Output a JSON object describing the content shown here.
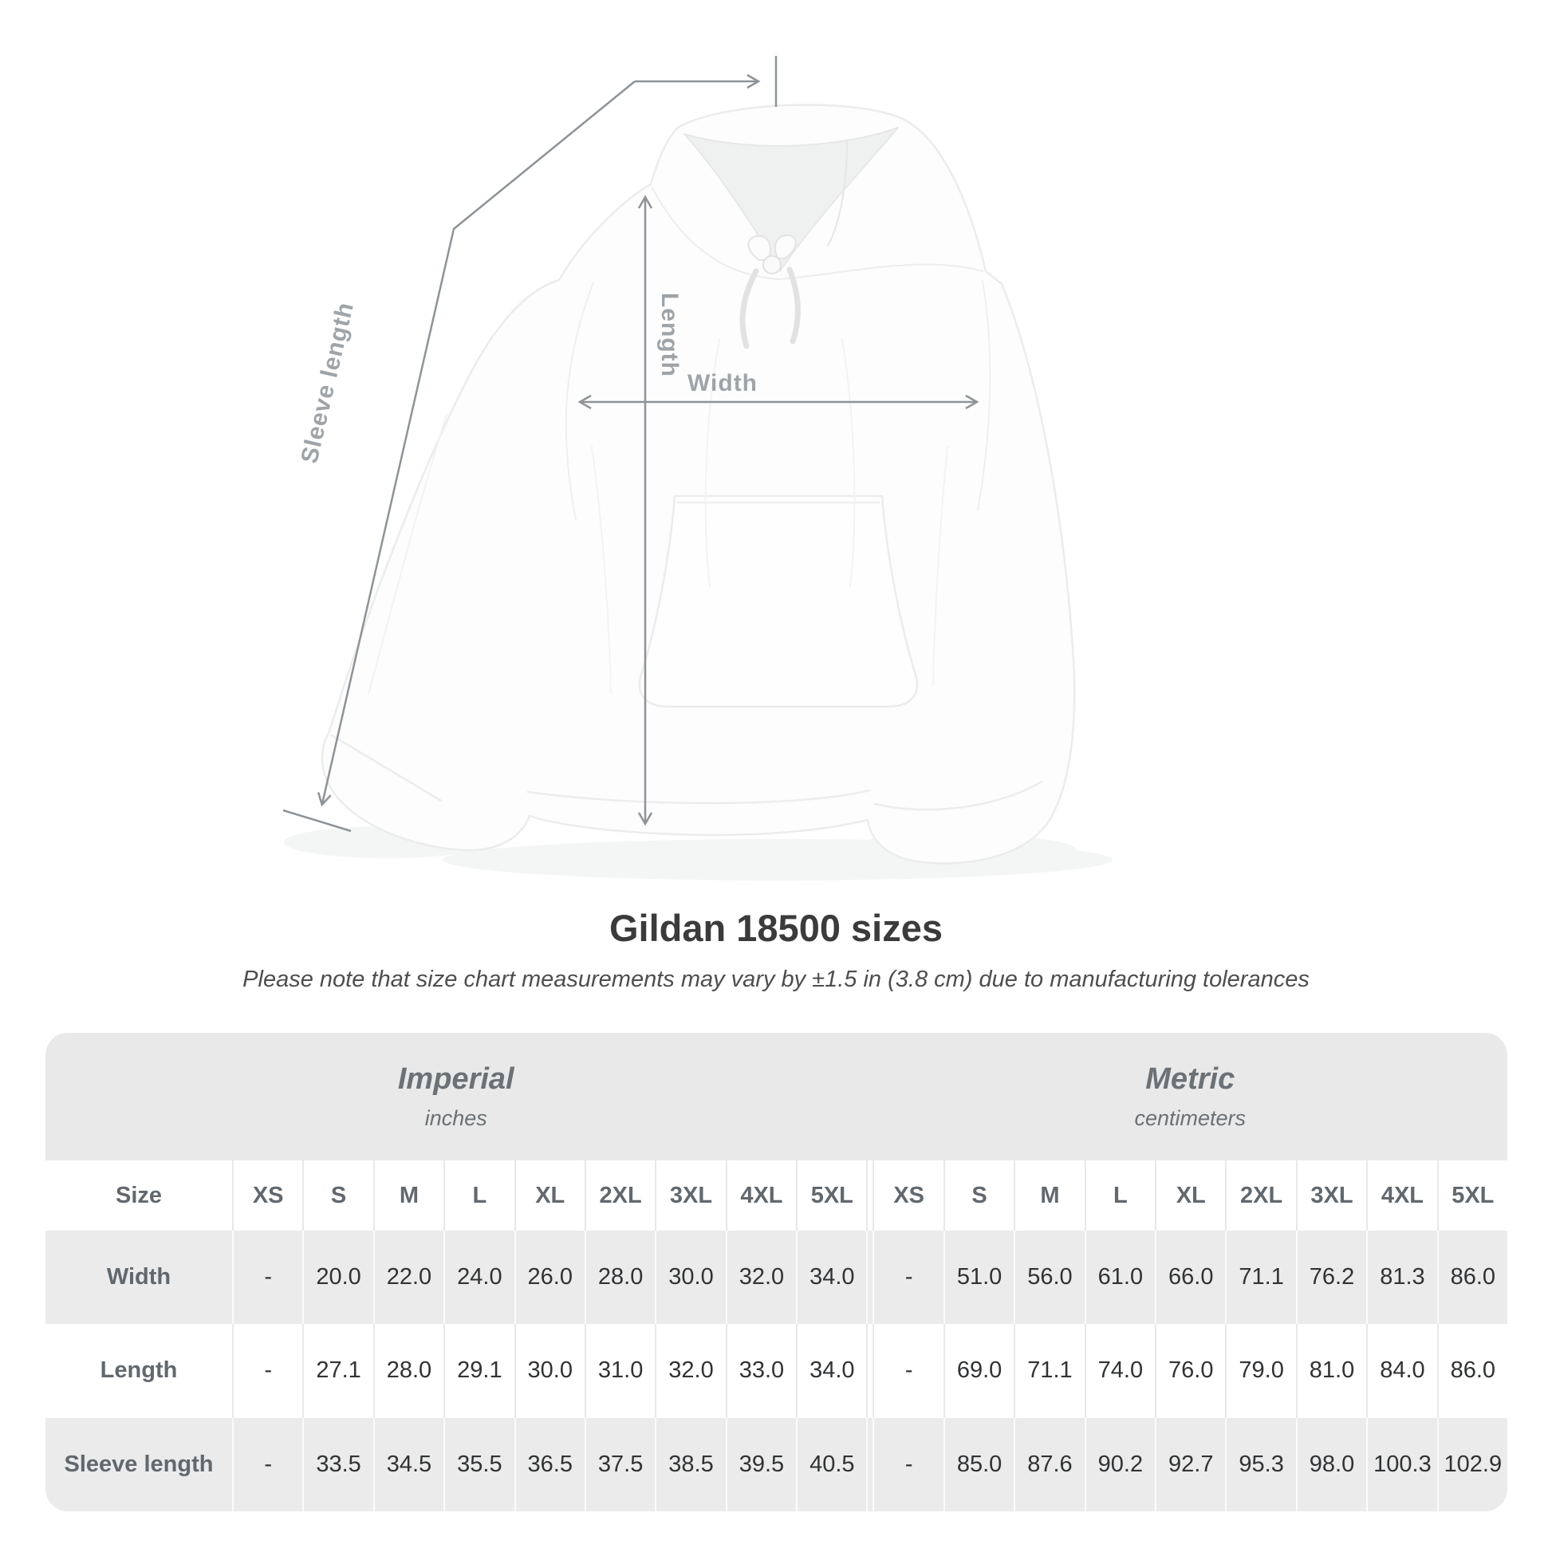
{
  "figure": {
    "labels": {
      "length": "Length",
      "width": "Width",
      "sleeve": "Sleeve length"
    }
  },
  "title": "Gildan 18500 sizes",
  "subtitle": "Please note that size chart measurements may vary by ±1.5 in (3.8 cm) due to manufacturing tolerances",
  "table": {
    "size_label": "Size",
    "groups": [
      {
        "name": "Imperial",
        "unit": "inches"
      },
      {
        "name": "Metric",
        "unit": "centimeters"
      }
    ],
    "sizes": [
      "XS",
      "S",
      "M",
      "L",
      "XL",
      "2XL",
      "3XL",
      "4XL",
      "5XL"
    ],
    "rows": [
      {
        "label": "Width",
        "imperial": [
          "-",
          "20.0",
          "22.0",
          "24.0",
          "26.0",
          "28.0",
          "30.0",
          "32.0",
          "34.0"
        ],
        "metric": [
          "-",
          "51.0",
          "56.0",
          "61.0",
          "66.0",
          "71.1",
          "76.2",
          "81.3",
          "86.0"
        ]
      },
      {
        "label": "Length",
        "imperial": [
          "-",
          "27.1",
          "28.0",
          "29.1",
          "30.0",
          "31.0",
          "32.0",
          "33.0",
          "34.0"
        ],
        "metric": [
          "-",
          "69.0",
          "71.1",
          "74.0",
          "76.0",
          "79.0",
          "81.0",
          "84.0",
          "86.0"
        ]
      },
      {
        "label": "Sleeve length",
        "imperial": [
          "-",
          "33.5",
          "34.5",
          "35.5",
          "36.5",
          "37.5",
          "38.5",
          "39.5",
          "40.5"
        ],
        "metric": [
          "-",
          "85.0",
          "87.6",
          "90.2",
          "92.7",
          "95.3",
          "98.0",
          "100.3",
          "102.9"
        ]
      }
    ]
  },
  "chart_data": {
    "type": "table",
    "title": "Gildan 18500 sizes",
    "columns": [
      "Size",
      "XS",
      "S",
      "M",
      "L",
      "XL",
      "2XL",
      "3XL",
      "4XL",
      "5XL (in)",
      "XS",
      "S",
      "M",
      "L",
      "XL",
      "2XL",
      "3XL",
      "4XL",
      "5XL (cm)"
    ],
    "rows": [
      [
        "Width",
        "-",
        20.0,
        22.0,
        24.0,
        26.0,
        28.0,
        30.0,
        32.0,
        34.0,
        "-",
        51.0,
        56.0,
        61.0,
        66.0,
        71.1,
        76.2,
        81.3,
        86.0
      ],
      [
        "Length",
        "-",
        27.1,
        28.0,
        29.1,
        30.0,
        31.0,
        32.0,
        33.0,
        34.0,
        "-",
        69.0,
        71.1,
        74.0,
        76.0,
        79.0,
        81.0,
        84.0,
        86.0
      ],
      [
        "Sleeve length",
        "-",
        33.5,
        34.5,
        35.5,
        36.5,
        37.5,
        38.5,
        39.5,
        40.5,
        "-",
        85.0,
        87.6,
        90.2,
        92.7,
        95.3,
        98.0,
        100.3,
        102.9
      ]
    ]
  },
  "colors": {
    "measure_line": "#8d9397",
    "measure_label": "#9ea4a8",
    "band_bg": "#e9e9e9",
    "row_alt_bg": "#ebebeb",
    "header_text": "#61686e",
    "value_text": "#303234",
    "title_text": "#3b3b3b"
  }
}
